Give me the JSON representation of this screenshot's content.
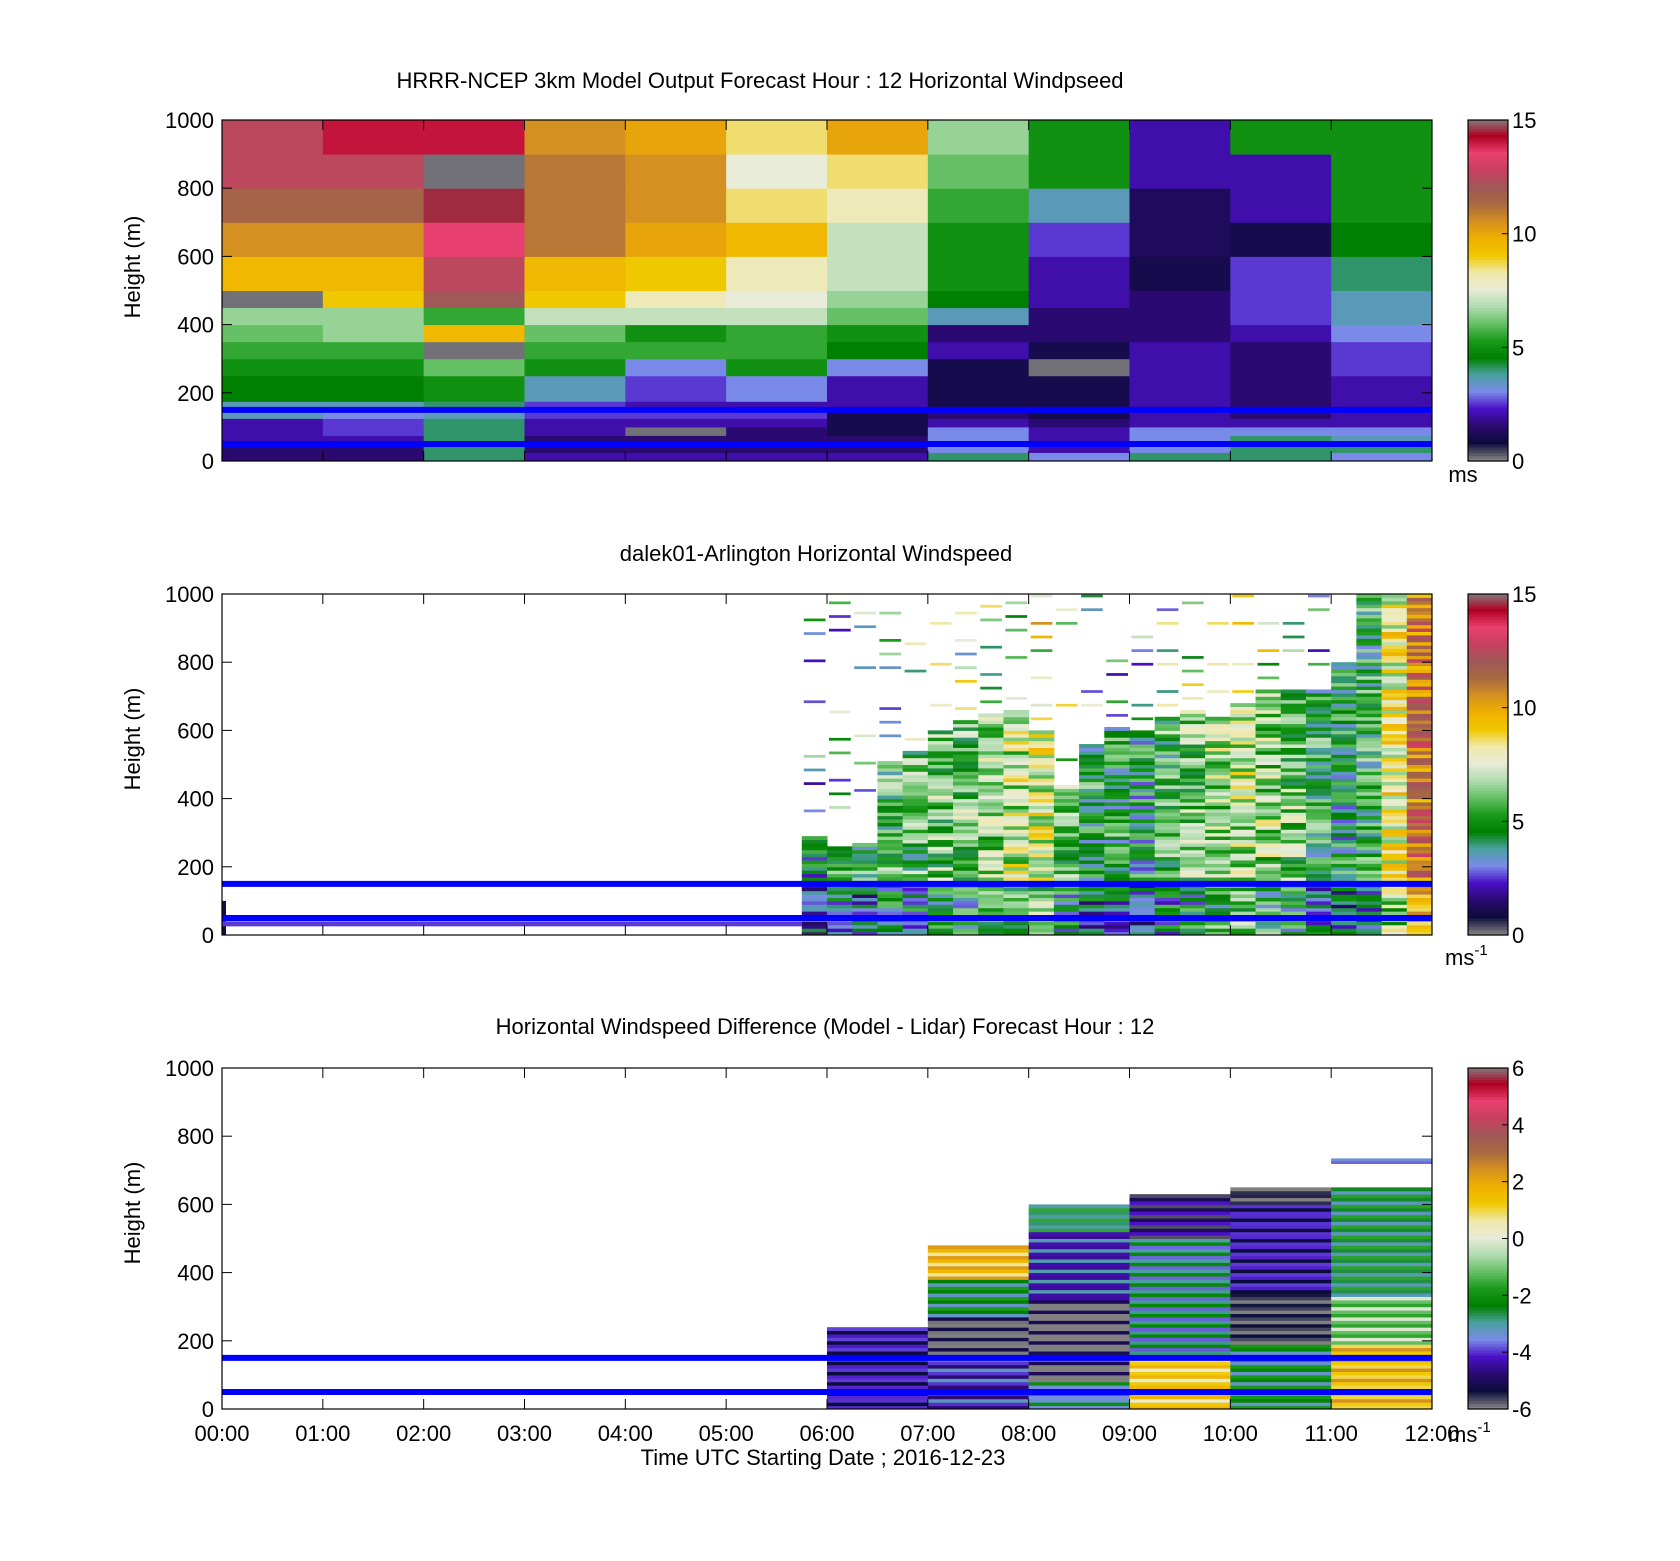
{
  "figure": {
    "x_axis_title": "Time UTC  Starting Date ; 2016-12-23",
    "x_ticks": [
      "00:00",
      "01:00",
      "02:00",
      "03:00",
      "04:00",
      "05:00",
      "06:00",
      "07:00",
      "08:00",
      "09:00",
      "10:00",
      "11:00",
      "12:00"
    ]
  },
  "palette": {
    "ramp": [
      "#808080",
      "#0c0c3c",
      "#2a0a70",
      "#4a10c8",
      "#7a8ae8",
      "#4aa0a0",
      "#008000",
      "#1a9a1a",
      "#66c066",
      "#b0dcb0",
      "#e8ecd8",
      "#f0e8a8",
      "#f0c800",
      "#f0b000",
      "#d49020",
      "#a86a40",
      "#a05858",
      "#c84060",
      "#e84070",
      "#b00020",
      "#808080"
    ],
    "overlay_line_color": "#0000ff"
  },
  "chart_data": [
    {
      "type": "heatmap",
      "title": "HRRR-NCEP 3km Model Output   Forecast Hour : 12 Horizontal Windpseed",
      "ylabel": "Height (m)",
      "xlim": [
        0,
        12
      ],
      "ylim": [
        0,
        1000
      ],
      "y_ticks": [
        "0",
        "200",
        "400",
        "600",
        "800",
        "1000"
      ],
      "colorbar": {
        "min": 0,
        "max": 15,
        "ticks": [
          "0",
          "5",
          "10",
          "15"
        ],
        "unit": "ms"
      },
      "overlay_lines_height_m": [
        50,
        150
      ],
      "x_hour_start": [
        0,
        1,
        2,
        3,
        4,
        5,
        6,
        7,
        8,
        9,
        10,
        11
      ],
      "height_bins_m": [
        0,
        25,
        50,
        75,
        100,
        125,
        150,
        175,
        200,
        250,
        300,
        350,
        400,
        450,
        500,
        550,
        600,
        700,
        800,
        900,
        1000
      ],
      "z": [
        [
          1.5,
          1.5,
          4,
          2,
          2,
          2,
          2,
          4,
          3,
          4,
          4,
          3
        ],
        [
          1.5,
          1.5,
          4,
          1.5,
          1.5,
          1.5,
          1.5,
          3,
          2,
          3,
          4,
          4
        ],
        [
          2,
          2,
          4,
          1.5,
          1.5,
          1.5,
          1.5,
          3,
          2,
          3,
          4,
          3.5
        ],
        [
          2,
          2.5,
          4,
          2,
          0.1,
          1.5,
          1,
          3,
          2,
          3,
          3,
          3
        ],
        [
          2,
          2.5,
          4,
          2,
          2,
          2,
          1,
          2,
          1.5,
          2,
          2,
          2
        ],
        [
          3.5,
          3,
          3.5,
          2.5,
          2.5,
          2.5,
          1,
          1.5,
          1,
          2,
          1.5,
          2
        ],
        [
          3.5,
          3.5,
          4,
          2.5,
          2,
          2,
          2,
          1,
          1,
          2,
          1.5,
          2
        ],
        [
          4.5,
          4.5,
          5,
          3.5,
          2.5,
          3,
          2,
          1,
          1,
          2,
          1.5,
          2
        ],
        [
          4.5,
          4.5,
          5,
          3.5,
          2.5,
          3,
          2,
          1,
          1,
          2,
          1.5,
          2
        ],
        [
          5,
          5,
          6,
          5,
          3,
          5,
          3,
          1,
          0.1,
          2,
          1.5,
          2.5
        ],
        [
          5.5,
          5.5,
          0.1,
          5.5,
          5.5,
          5.5,
          4.5,
          2,
          1,
          2,
          1.5,
          2.5
        ],
        [
          6,
          6.5,
          9.5,
          6,
          5,
          5.5,
          5,
          1.5,
          1.5,
          1.5,
          2,
          3
        ],
        [
          6.5,
          6.5,
          5.5,
          7,
          7,
          7,
          6,
          3.5,
          1.5,
          1.5,
          2.5,
          3.5
        ],
        [
          0.1,
          9,
          12,
          9,
          8,
          7.5,
          6.5,
          4.5,
          2,
          1.5,
          2.5,
          3.5
        ],
        [
          9.5,
          9.5,
          12.5,
          9.5,
          9,
          8,
          7,
          5,
          2,
          1,
          2.5,
          4
        ],
        [
          9.5,
          9.5,
          12.5,
          9.5,
          9,
          8,
          7,
          5,
          2,
          1,
          2.5,
          4
        ],
        [
          10.5,
          10.5,
          13.5,
          11,
          10,
          9.5,
          7,
          5,
          2.5,
          1.2,
          1,
          4.5
        ],
        [
          11.5,
          11.5,
          14.5,
          11,
          10.5,
          8.5,
          8,
          5.5,
          3.5,
          1.2,
          2,
          5
        ],
        [
          12.5,
          12.5,
          0.1,
          11,
          10.5,
          7.5,
          8.5,
          6,
          5,
          2,
          2,
          5
        ],
        [
          12.5,
          14,
          14,
          10.5,
          10,
          8.5,
          10,
          6.5,
          5,
          2,
          5,
          5
        ]
      ]
    },
    {
      "type": "heatmap",
      "title": "dalek01-Arlington  Horizontal Windspeed",
      "ylabel": "Height (m)",
      "xlim": [
        0,
        12
      ],
      "ylim": [
        0,
        1000
      ],
      "y_ticks": [
        "0",
        "200",
        "400",
        "600",
        "800",
        "1000"
      ],
      "colorbar": {
        "min": 0,
        "max": 15,
        "ticks": [
          "0",
          "5",
          "10",
          "15"
        ],
        "unit": "ms",
        "unit_sup": "-1"
      },
      "overlay_lines_height_m": [
        50,
        150
      ],
      "profile_time_h": [
        5.75,
        6.0,
        6.25,
        6.5,
        6.75,
        7.0,
        7.25,
        7.5,
        7.75,
        8.0,
        8.25,
        8.5,
        8.75,
        9.0,
        9.25,
        9.5,
        9.75,
        10.0,
        10.25,
        10.5,
        10.75,
        11.0,
        11.25,
        11.5,
        11.75
      ],
      "profile_top_m": [
        290,
        260,
        270,
        510,
        540,
        600,
        630,
        650,
        660,
        600,
        440,
        560,
        610,
        600,
        640,
        660,
        640,
        680,
        720,
        720,
        720,
        800,
        1000,
        1000,
        1000
      ],
      "profile_mean_speed": [
        4,
        5,
        5,
        5.5,
        5.5,
        6,
        6,
        6.5,
        7,
        7.5,
        6,
        5,
        5,
        4.5,
        5.5,
        6,
        6.5,
        7,
        6.5,
        6,
        5,
        4.5,
        5,
        8,
        11
      ]
    },
    {
      "type": "heatmap",
      "title": "Horizontal Windspeed Difference (Model - Lidar) Forecast Hour : 12",
      "ylabel": "Height (m)",
      "xlim": [
        0,
        12
      ],
      "ylim": [
        0,
        1000
      ],
      "y_ticks": [
        "0",
        "200",
        "400",
        "600",
        "800",
        "1000"
      ],
      "colorbar": {
        "min": -6,
        "max": 6,
        "ticks": [
          "-6",
          "-4",
          "-2",
          "0",
          "2",
          "4",
          "6"
        ],
        "unit": "ms",
        "unit_sup": "-1"
      },
      "overlay_lines_height_m": [
        50,
        150
      ],
      "x_hour_start": [
        6,
        7,
        8,
        9,
        10,
        11
      ],
      "column_top_m": [
        240,
        480,
        600,
        630,
        650,
        650
      ],
      "segments": [
        {
          "hour": 6,
          "from_m": 0,
          "to_m": 240,
          "value": -4.5
        },
        {
          "hour": 7,
          "from_m": 0,
          "to_m": 160,
          "value": -4
        },
        {
          "hour": 7,
          "from_m": 160,
          "to_m": 270,
          "value": -6
        },
        {
          "hour": 7,
          "from_m": 270,
          "to_m": 380,
          "value": -2.5
        },
        {
          "hour": 7,
          "from_m": 380,
          "to_m": 480,
          "value": 1.5
        },
        {
          "hour": 8,
          "from_m": 0,
          "to_m": 80,
          "value": -3
        },
        {
          "hour": 8,
          "from_m": 80,
          "to_m": 320,
          "value": -6
        },
        {
          "hour": 8,
          "from_m": 320,
          "to_m": 520,
          "value": -4
        },
        {
          "hour": 8,
          "from_m": 520,
          "to_m": 600,
          "value": -2.5
        },
        {
          "hour": 9,
          "from_m": 0,
          "to_m": 150,
          "value": 1
        },
        {
          "hour": 9,
          "from_m": 150,
          "to_m": 500,
          "value": -3
        },
        {
          "hour": 9,
          "from_m": 500,
          "to_m": 630,
          "value": -5
        },
        {
          "hour": 10,
          "from_m": 0,
          "to_m": 190,
          "value": -2.5
        },
        {
          "hour": 10,
          "from_m": 190,
          "to_m": 340,
          "value": -6
        },
        {
          "hour": 10,
          "from_m": 340,
          "to_m": 600,
          "value": -4.5
        },
        {
          "hour": 10,
          "from_m": 600,
          "to_m": 650,
          "value": -6
        },
        {
          "hour": 11,
          "from_m": 0,
          "to_m": 190,
          "value": 1.5
        },
        {
          "hour": 11,
          "from_m": 190,
          "to_m": 330,
          "value": -1
        },
        {
          "hour": 11,
          "from_m": 330,
          "to_m": 650,
          "value": -2.5
        },
        {
          "hour": 11,
          "from_m": 720,
          "to_m": 735,
          "value": -3
        }
      ]
    }
  ]
}
